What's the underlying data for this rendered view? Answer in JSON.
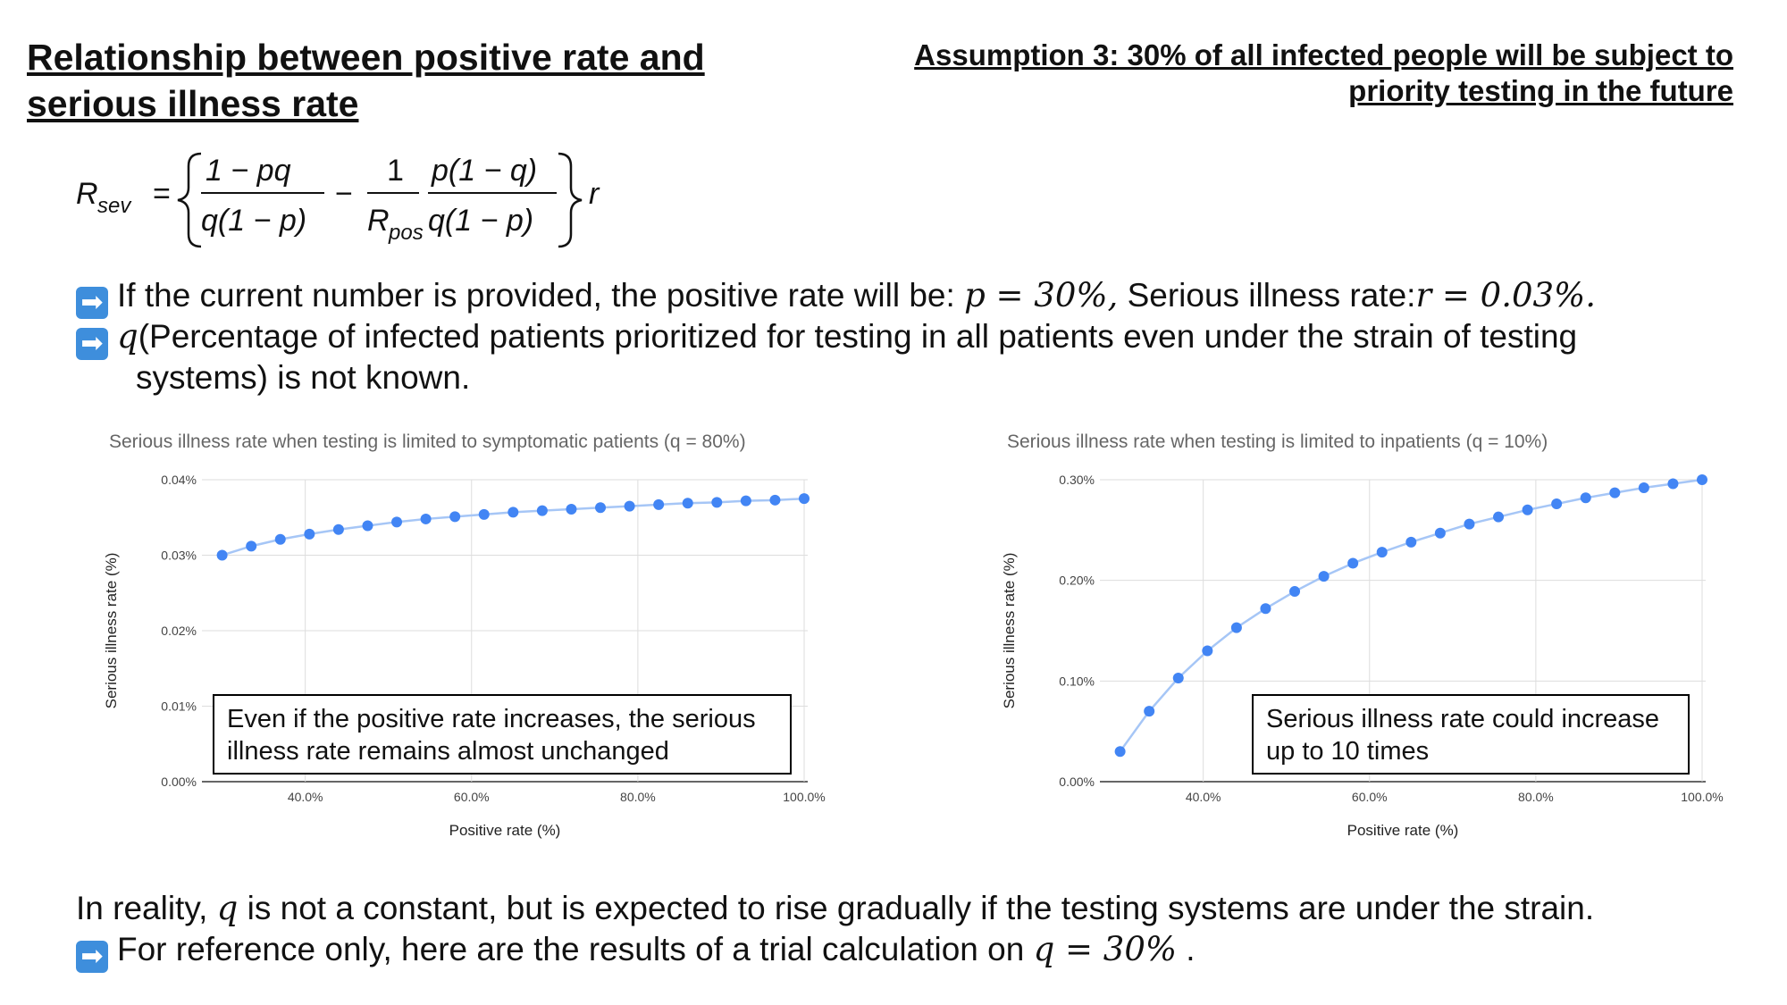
{
  "title_left": "Relationship between positive rate and serious illness rate",
  "title_right": "Assumption 3: 30% of all infected people will be subject to priority testing in the future",
  "formula": {
    "lhs": "R",
    "lhs_sub": "sev",
    "equals": "=",
    "num1": "1 − pq",
    "den1": "q(1 − p)",
    "minus": "−",
    "num2": "1",
    "den2": "R",
    "den2_sub": "pos",
    "num3": "p(1 − q)",
    "den3": "q(1 − p)",
    "r": "r"
  },
  "bullets": {
    "b1_text": "If the current number is provided, the positive rate will be: ",
    "b1_p": "p = 30%,",
    "b1_text2": " Serious illness rate:",
    "b1_r": "r = 0.03%.",
    "b2_q": "q",
    "b2_text": "(Percentage of infected patients prioritized for testing in all patients even under the strain of testing",
    "b2_text_cont": "systems) is not known."
  },
  "bottom": {
    "line1_a": "In reality, ",
    "line1_q": "q",
    "line1_b": " is not a constant, but is expected to rise gradually if the testing systems are under the strain.",
    "line2_a": "For reference only, here are the results of a trial calculation on ",
    "line2_q": "q = 30%",
    "line2_b": " ."
  },
  "icons": {
    "bullet": "right-arrow-icon"
  },
  "colors": {
    "series": "#4285f4",
    "line": "#a6c6f6",
    "grid": "#dddddd"
  },
  "annotations": {
    "left": "Even if the positive rate increases, the serious illness rate remains almost unchanged",
    "right": "Serious illness rate could increase up to 10 times"
  },
  "chart_data": [
    {
      "type": "scatter",
      "title": "Serious illness rate when testing is limited to symptomatic patients (q = 80%)",
      "xlabel": "Positive rate (%)",
      "ylabel": "Serious illness rate (%)",
      "xlim": [
        28,
        100
      ],
      "ylim": [
        0,
        0.04
      ],
      "xticks": [
        40,
        60,
        80,
        100
      ],
      "xtick_labels": [
        "40.0%",
        "60.0%",
        "80.0%",
        "100.0%"
      ],
      "yticks": [
        0,
        0.01,
        0.02,
        0.03,
        0.04
      ],
      "ytick_labels": [
        "0.00%",
        "0.01%",
        "0.02%",
        "0.03%",
        "0.04%"
      ],
      "grid": true,
      "x": [
        30,
        33.5,
        37,
        40.5,
        44,
        47.5,
        51,
        54.5,
        58,
        61.5,
        65,
        68.5,
        72,
        75.5,
        79,
        82.5,
        86,
        89.5,
        93,
        96.5,
        100
      ],
      "y": [
        0.03,
        0.0312,
        0.0321,
        0.0328,
        0.0334,
        0.0339,
        0.0344,
        0.0348,
        0.0351,
        0.0354,
        0.0357,
        0.0359,
        0.0361,
        0.0363,
        0.0365,
        0.0367,
        0.0369,
        0.037,
        0.0372,
        0.0373,
        0.0375
      ]
    },
    {
      "type": "scatter",
      "title": "Serious illness rate when testing is limited to inpatients (q = 10%)",
      "xlabel": "Positive rate (%)",
      "ylabel": "Serious illness rate (%)",
      "xlim": [
        28,
        100
      ],
      "ylim": [
        0,
        0.3
      ],
      "xticks": [
        40,
        60,
        80,
        100
      ],
      "xtick_labels": [
        "40.0%",
        "60.0%",
        "80.0%",
        "100.0%"
      ],
      "yticks": [
        0,
        0.1,
        0.2,
        0.3
      ],
      "ytick_labels": [
        "0.00%",
        "0.10%",
        "0.20%",
        "0.30%"
      ],
      "grid": true,
      "x": [
        30,
        33.5,
        37,
        40.5,
        44,
        47.5,
        51,
        54.5,
        58,
        61.5,
        65,
        68.5,
        72,
        75.5,
        79,
        82.5,
        86,
        89.5,
        93,
        96.5,
        100
      ],
      "y": [
        0.03,
        0.07,
        0.103,
        0.13,
        0.153,
        0.172,
        0.189,
        0.204,
        0.217,
        0.228,
        0.238,
        0.247,
        0.256,
        0.263,
        0.27,
        0.276,
        0.282,
        0.287,
        0.292,
        0.296,
        0.3
      ]
    }
  ]
}
